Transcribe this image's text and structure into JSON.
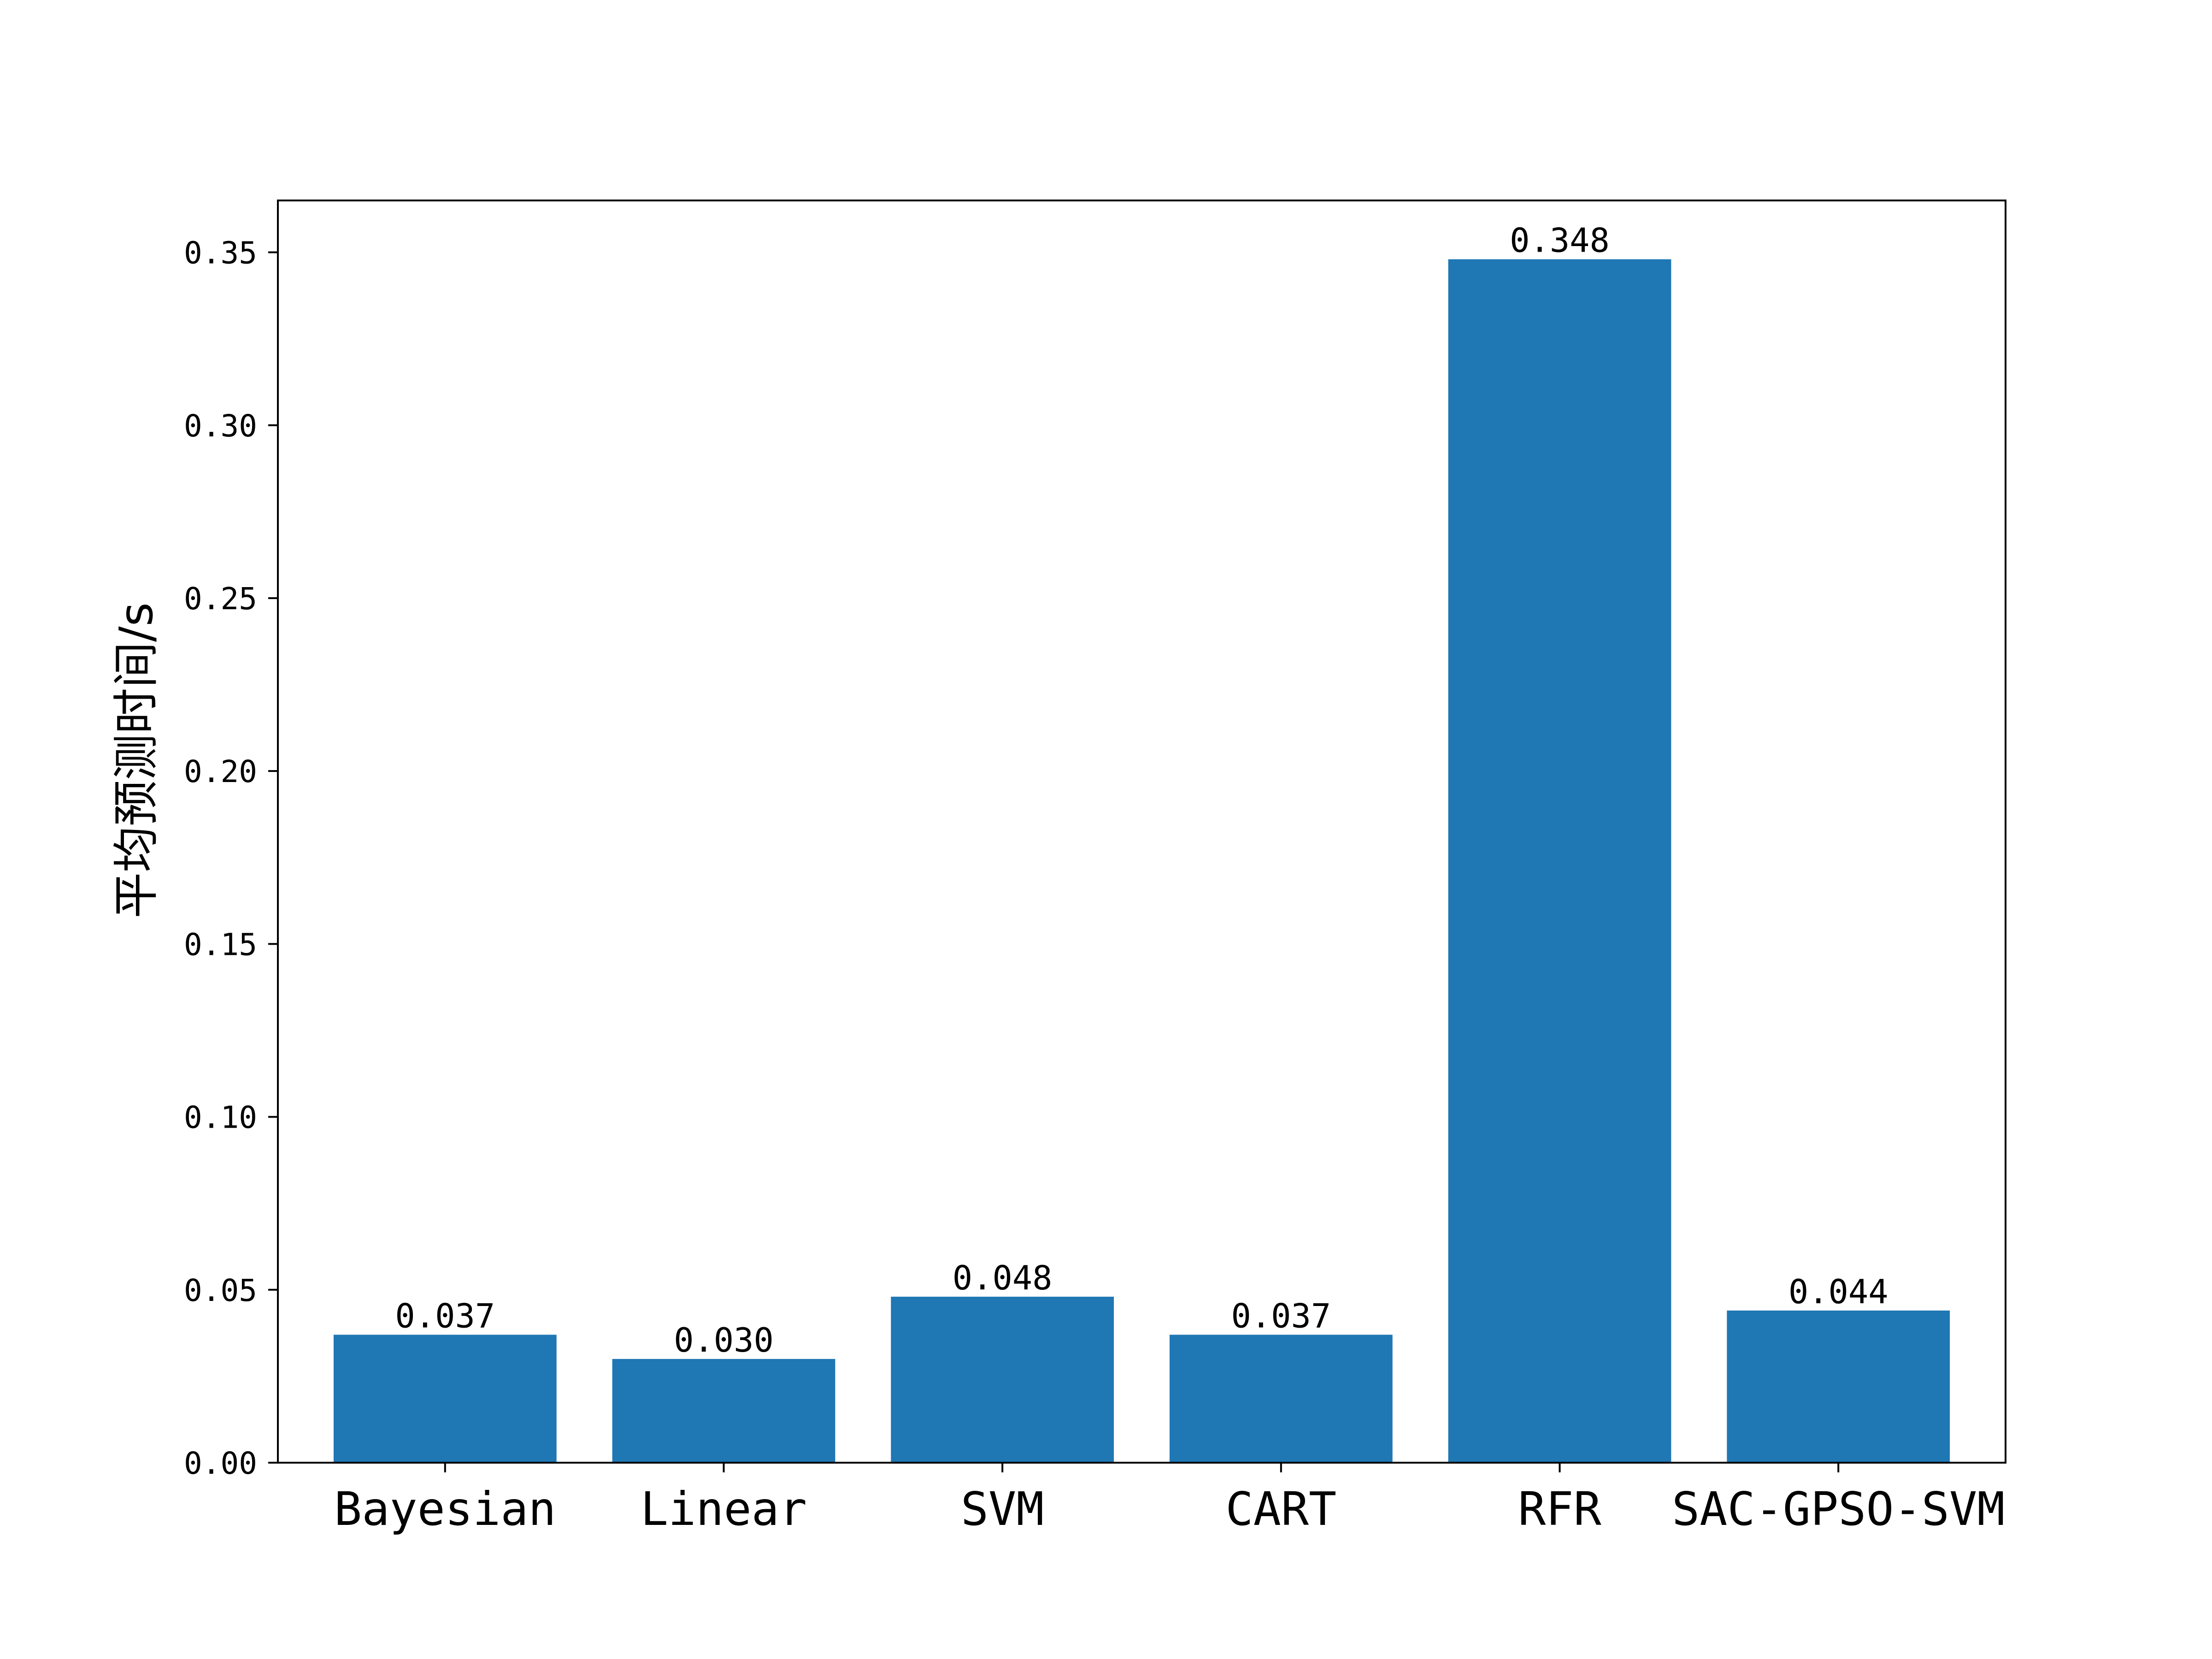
{
  "chart_data": {
    "type": "bar",
    "title": "",
    "xlabel": "",
    "ylabel": "平均预测时间/s",
    "categories": [
      "Bayesian",
      "Linear",
      "SVM",
      "CART",
      "RFR",
      "SAC-GPSO-SVM"
    ],
    "values": [
      0.037,
      0.03,
      0.048,
      0.037,
      0.348,
      0.044
    ],
    "data_labels": [
      "0.037",
      "0.030",
      "0.048",
      "0.037",
      "0.348",
      "0.044"
    ],
    "ylim": [
      0,
      0.365
    ],
    "yticks": [
      0.0,
      0.05,
      0.1,
      0.15,
      0.2,
      0.25,
      0.3,
      0.35
    ],
    "ytick_labels": [
      "0.00",
      "0.05",
      "0.10",
      "0.15",
      "0.20",
      "0.25",
      "0.30",
      "0.35"
    ],
    "grid": false,
    "legend": "none",
    "colors": {
      "bar": "#1f77b4",
      "axis": "#000000",
      "text": "#000000"
    }
  }
}
